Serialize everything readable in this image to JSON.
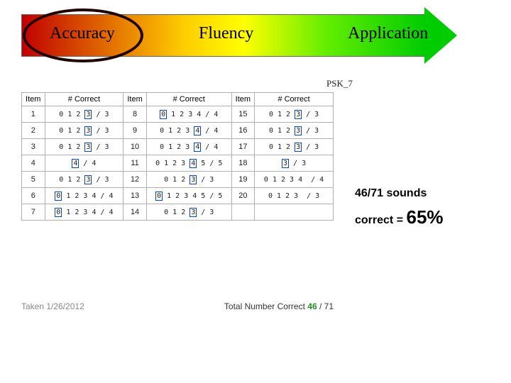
{
  "stages": {
    "a": "Accuracy",
    "b": "Fluency",
    "c": "Application"
  },
  "psk_label": "PSK_7",
  "headers": {
    "item": "Item",
    "correct": "# Correct"
  },
  "rows": [
    {
      "n": 1,
      "opts": "0 1 2",
      "box": "3",
      "tail": "",
      "den": 3
    },
    {
      "n": 2,
      "opts": "0 1 2",
      "box": "3",
      "tail": "",
      "den": 3
    },
    {
      "n": 3,
      "opts": "0 1 2",
      "box": "3",
      "tail": "",
      "den": 3
    },
    {
      "n": 4,
      "opts": "",
      "box": "4",
      "tail": "",
      "den": 4
    },
    {
      "n": 5,
      "opts": "0 1 2",
      "box": "3",
      "tail": "",
      "den": 3
    },
    {
      "n": 6,
      "opts": "",
      "box": "0",
      "tail": "1 2 3 4",
      "den": 4
    },
    {
      "n": 7,
      "opts": "",
      "box": "0",
      "tail": "1 2 3 4",
      "den": 4
    },
    {
      "n": 8,
      "opts": "",
      "box": "0",
      "tail": "1 2 3 4",
      "den": 4
    },
    {
      "n": 9,
      "opts": "0 1 2 3",
      "box": "4",
      "tail": "",
      "den": 4
    },
    {
      "n": 10,
      "opts": "0 1 2 3",
      "box": "4",
      "tail": "",
      "den": 4
    },
    {
      "n": 11,
      "opts": "0 1 2 3",
      "box": "4",
      "tail": "5",
      "den": 5
    },
    {
      "n": 12,
      "opts": "0 1 2",
      "box": "3",
      "tail": "",
      "den": 3
    },
    {
      "n": 13,
      "opts": "",
      "box": "0",
      "tail": "1 2 3 4 5",
      "den": 5
    },
    {
      "n": 14,
      "opts": "0 1 2",
      "box": "3",
      "tail": "",
      "den": 3
    },
    {
      "n": 15,
      "opts": "0 1 2",
      "box": "3",
      "tail": "",
      "den": 3
    },
    {
      "n": 16,
      "opts": "0 1 2",
      "box": "3",
      "tail": "",
      "den": 3
    },
    {
      "n": 17,
      "opts": "0 1 2",
      "box": "3",
      "tail": "",
      "den": 3
    },
    {
      "n": 18,
      "opts": "",
      "box": "3",
      "tail": "",
      "den": 3
    },
    {
      "n": 19,
      "opts": "0 1 2 3 4",
      "box": "",
      "tail": "",
      "den": 4
    },
    {
      "n": 20,
      "opts": "0 1 2 3",
      "box": "",
      "tail": "",
      "den": 3
    }
  ],
  "footer": {
    "taken": "Taken 1/26/2012",
    "total_label": "Total Number Correct",
    "total_correct": "46",
    "total_of": "/ 71"
  },
  "result": {
    "line1": "46/71 sounds",
    "line2a": "correct = ",
    "line2b": "65%"
  }
}
